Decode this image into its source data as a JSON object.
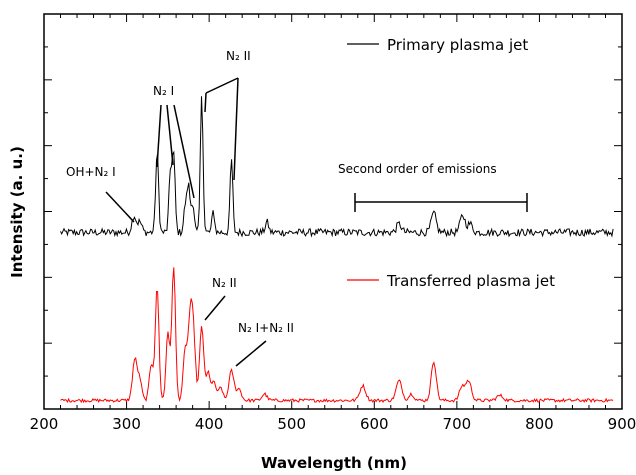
{
  "chart_data": {
    "type": "line",
    "title": "",
    "xlabel": "Wavelength (nm)",
    "ylabel": "Intensity (a. u.)",
    "xlim": [
      200,
      900
    ],
    "x_ticks": [
      "200",
      "300",
      "400",
      "500",
      "600",
      "700",
      "800",
      "900"
    ],
    "y_ticks_labeled": false,
    "grid": false,
    "legend_placement": "inside, right of each trace",
    "series": [
      {
        "name": "Primary plasma jet",
        "color": "#000000",
        "baseline": 0.06,
        "noise": 0.035,
        "peaks": [
          {
            "x": 309,
            "h": 0.08,
            "w": 2.5
          },
          {
            "x": 316,
            "h": 0.05,
            "w": 2.5
          },
          {
            "x": 337,
            "h": 0.38,
            "w": 1.8
          },
          {
            "x": 353,
            "h": 0.27,
            "w": 1.8
          },
          {
            "x": 357,
            "h": 0.36,
            "w": 1.8
          },
          {
            "x": 371,
            "h": 0.12,
            "w": 1.8
          },
          {
            "x": 375,
            "h": 0.22,
            "w": 1.8
          },
          {
            "x": 380,
            "h": 0.14,
            "w": 1.8
          },
          {
            "x": 391,
            "h": 0.66,
            "w": 1.6
          },
          {
            "x": 405,
            "h": 0.1,
            "w": 1.6
          },
          {
            "x": 427,
            "h": 0.35,
            "w": 1.6
          },
          {
            "x": 470,
            "h": 0.05,
            "w": 2
          },
          {
            "x": 630,
            "h": 0.04,
            "w": 3
          },
          {
            "x": 672,
            "h": 0.09,
            "w": 3
          },
          {
            "x": 707,
            "h": 0.08,
            "w": 3
          },
          {
            "x": 716,
            "h": 0.04,
            "w": 3
          }
        ]
      },
      {
        "name": "Transferred plasma jet",
        "color": "#ff0000",
        "baseline": 0.04,
        "noise": 0.02,
        "peaks": [
          {
            "x": 310,
            "h": 0.25,
            "w": 2.8
          },
          {
            "x": 316,
            "h": 0.12,
            "w": 2.5
          },
          {
            "x": 330,
            "h": 0.22,
            "w": 2.5
          },
          {
            "x": 337,
            "h": 0.69,
            "w": 2.2
          },
          {
            "x": 350,
            "h": 0.42,
            "w": 2.2
          },
          {
            "x": 357,
            "h": 0.82,
            "w": 2.2
          },
          {
            "x": 371,
            "h": 0.3,
            "w": 2.5
          },
          {
            "x": 377,
            "h": 0.46,
            "w": 2.5
          },
          {
            "x": 381,
            "h": 0.37,
            "w": 2.5
          },
          {
            "x": 391,
            "h": 0.45,
            "w": 2.5
          },
          {
            "x": 399,
            "h": 0.17,
            "w": 2.5
          },
          {
            "x": 406,
            "h": 0.11,
            "w": 2.5
          },
          {
            "x": 414,
            "h": 0.08,
            "w": 2.5
          },
          {
            "x": 427,
            "h": 0.18,
            "w": 3
          },
          {
            "x": 436,
            "h": 0.07,
            "w": 3
          },
          {
            "x": 467,
            "h": 0.04,
            "w": 3
          },
          {
            "x": 586,
            "h": 0.09,
            "w": 3.5
          },
          {
            "x": 630,
            "h": 0.12,
            "w": 3.5
          },
          {
            "x": 645,
            "h": 0.04,
            "w": 3
          },
          {
            "x": 672,
            "h": 0.24,
            "w": 3
          },
          {
            "x": 706,
            "h": 0.08,
            "w": 3
          },
          {
            "x": 714,
            "h": 0.12,
            "w": 3.5
          },
          {
            "x": 752,
            "h": 0.03,
            "w": 4
          }
        ]
      }
    ],
    "annotations": {
      "oh_n2": "OH+N₂ I",
      "n2i_top": "N₂ I",
      "n2ii_top": "N₂ II",
      "second_order": "Second order of emissions",
      "n2ii_bottom": "N₂ II",
      "n2i_n2ii_bottom": "N₂ I+N₂ II"
    }
  }
}
